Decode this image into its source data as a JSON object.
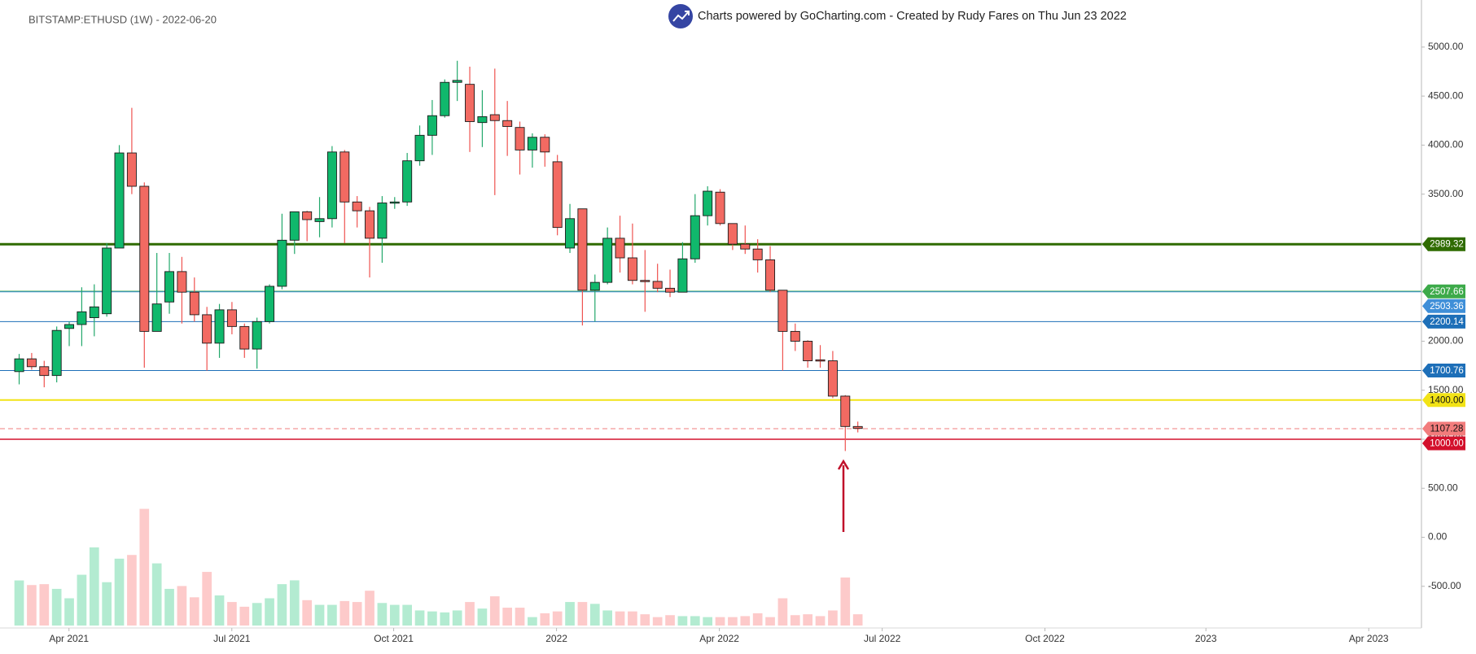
{
  "chart_data": {
    "type": "candlestick",
    "title": "BITSTAMP:ETHUSD (1W) - 2022-06-20",
    "subtitle": "Charts powered by GoCharting.com - Created by Rudy Fares on Thu Jun 23 2022",
    "ylim": [
      -900,
      5480
    ],
    "yticks": [
      {
        "value": -500,
        "label": "-500.00"
      },
      {
        "value": 0,
        "label": "0.00"
      },
      {
        "value": 500,
        "label": "500.00"
      },
      {
        "value": 1000,
        "label": "1000.00"
      },
      {
        "value": 1500,
        "label": "1500.00"
      },
      {
        "value": 2000,
        "label": "2000.00"
      },
      {
        "value": 2500,
        "label": "2500.00"
      },
      {
        "value": 3000,
        "label": "3000.00"
      },
      {
        "value": 3500,
        "label": "3500.00"
      },
      {
        "value": 4000,
        "label": "4000.00"
      },
      {
        "value": 4500,
        "label": "4500.00"
      },
      {
        "value": 5000,
        "label": "5000.00"
      }
    ],
    "xlim": [
      -0.23,
      112.03
    ],
    "xticks": [
      {
        "value": 3.98,
        "label": "Apr 2021"
      },
      {
        "value": 16.99,
        "label": "Jul 2021"
      },
      {
        "value": 29.92,
        "label": "Oct 2021"
      },
      {
        "value": 42.93,
        "label": "2022"
      },
      {
        "value": 55.94,
        "label": "Apr 2022"
      },
      {
        "value": 68.95,
        "label": "Jul 2022"
      },
      {
        "value": 81.95,
        "label": "Oct 2022"
      },
      {
        "value": 94.81,
        "label": "2023"
      },
      {
        "value": 107.82,
        "label": "Apr 2023"
      }
    ],
    "up_color": "#10b86c",
    "down_color": "#f26a62",
    "volume_up_color": "#b3ebd1",
    "volume_down_color": "#fdcaca",
    "open": [
      1690,
      1820,
      1740,
      1650,
      2130,
      2170,
      2240,
      2280,
      2950,
      3920,
      3580,
      2100,
      2400,
      2710,
      2500,
      2270,
      1980,
      2320,
      2150,
      1920,
      2200,
      2560,
      3030,
      3320,
      3220,
      3250,
      3930,
      3420,
      3330,
      3050,
      3410,
      3420,
      3840,
      4100,
      4300,
      4640,
      4620,
      4230,
      4310,
      4250,
      4180,
      3950,
      4080,
      3830,
      2950,
      3350,
      2520,
      2600,
      3050,
      2850,
      2620,
      2610,
      2540,
      2500,
      2840,
      3280,
      3520,
      3200,
      2990,
      2940,
      2830,
      2520,
      2100,
      2000,
      1810,
      1800,
      1440,
      1130
    ],
    "high": [
      1870,
      1880,
      1800,
      2150,
      2200,
      2550,
      2580,
      3000,
      4000,
      4380,
      3620,
      2900,
      2900,
      2860,
      2650,
      2350,
      2380,
      2400,
      2180,
      2240,
      2580,
      3300,
      3320,
      3330,
      3470,
      3990,
      3950,
      3480,
      3370,
      3480,
      3470,
      3920,
      4200,
      4460,
      4670,
      4860,
      4800,
      4560,
      4780,
      4450,
      4240,
      4120,
      4110,
      3900,
      3400,
      3350,
      2680,
      3160,
      3280,
      3200,
      2930,
      2790,
      2730,
      3010,
      3500,
      3580,
      3550,
      3200,
      3180,
      3040,
      2970,
      2520,
      2180,
      2010,
      1960,
      1900,
      1450,
      1180
    ],
    "low": [
      1560,
      1710,
      1530,
      1580,
      1950,
      1950,
      2050,
      2250,
      2950,
      3500,
      1730,
      2100,
      2280,
      2180,
      2200,
      1700,
      1830,
      2070,
      1830,
      1720,
      2180,
      2530,
      2890,
      3020,
      3060,
      3160,
      3000,
      3160,
      2650,
      2800,
      3350,
      3380,
      3790,
      3900,
      4280,
      4450,
      3930,
      3980,
      3490,
      3890,
      3700,
      3770,
      3780,
      3080,
      2900,
      2160,
      2200,
      2580,
      2700,
      2580,
      2300,
      2500,
      2450,
      2500,
      2800,
      3180,
      3180,
      2930,
      2890,
      2700,
      2500,
      1700,
      1900,
      1730,
      1730,
      1420,
      880,
      1070
    ],
    "close": [
      1820,
      1740,
      1650,
      2110,
      2170,
      2300,
      2350,
      2950,
      3920,
      3580,
      2100,
      2380,
      2710,
      2500,
      2270,
      1980,
      2320,
      2150,
      1920,
      2200,
      2560,
      3030,
      3320,
      3240,
      3250,
      3930,
      3420,
      3330,
      3050,
      3410,
      3420,
      3840,
      4100,
      4300,
      4640,
      4660,
      4240,
      4290,
      4250,
      4190,
      3950,
      4080,
      3930,
      3160,
      3250,
      2520,
      2600,
      3050,
      2850,
      2620,
      2610,
      2540,
      2500,
      2840,
      3280,
      3530,
      3200,
      2990,
      2940,
      2830,
      2520,
      2100,
      2000,
      1800,
      1800,
      1440,
      1130,
      1110
    ],
    "volume": [
      460,
      413,
      422,
      374,
      278,
      518,
      797,
      442,
      682,
      720,
      1190,
      634,
      374,
      403,
      288,
      547,
      307,
      240,
      192,
      230,
      278,
      422,
      461,
      259,
      211,
      211,
      250,
      240,
      355,
      230,
      211,
      211,
      154,
      144,
      134,
      154,
      240,
      173,
      298,
      182,
      182,
      86,
      125,
      144,
      240,
      240,
      221,
      154,
      144,
      144,
      115,
      86,
      106,
      96,
      96,
      86,
      86,
      86,
      96,
      125,
      86,
      278,
      106,
      115,
      96,
      154,
      490,
      115
    ],
    "levels": [
      {
        "value": 2989.32,
        "color": "#2f6b00",
        "width": 3
      },
      {
        "value": 2507.66,
        "color": "#3daa4a",
        "width": 1.5
      },
      {
        "value": 2503.36,
        "color": "#3f8fd8",
        "width": 1
      },
      {
        "value": 2200.14,
        "color": "#1d6fb8",
        "width": 1
      },
      {
        "value": 1700.76,
        "color": "#1d6fb8",
        "width": 1
      },
      {
        "value": 1400,
        "label": "1400.00",
        "color": "#f2e316",
        "width": 2
      },
      {
        "value": 1107.28,
        "color": "#f27c7c",
        "width": 1,
        "dashed": true
      },
      {
        "value": 1000,
        "label": "1000.00",
        "color": "#d3102c",
        "width": 1.5
      }
    ]
  }
}
